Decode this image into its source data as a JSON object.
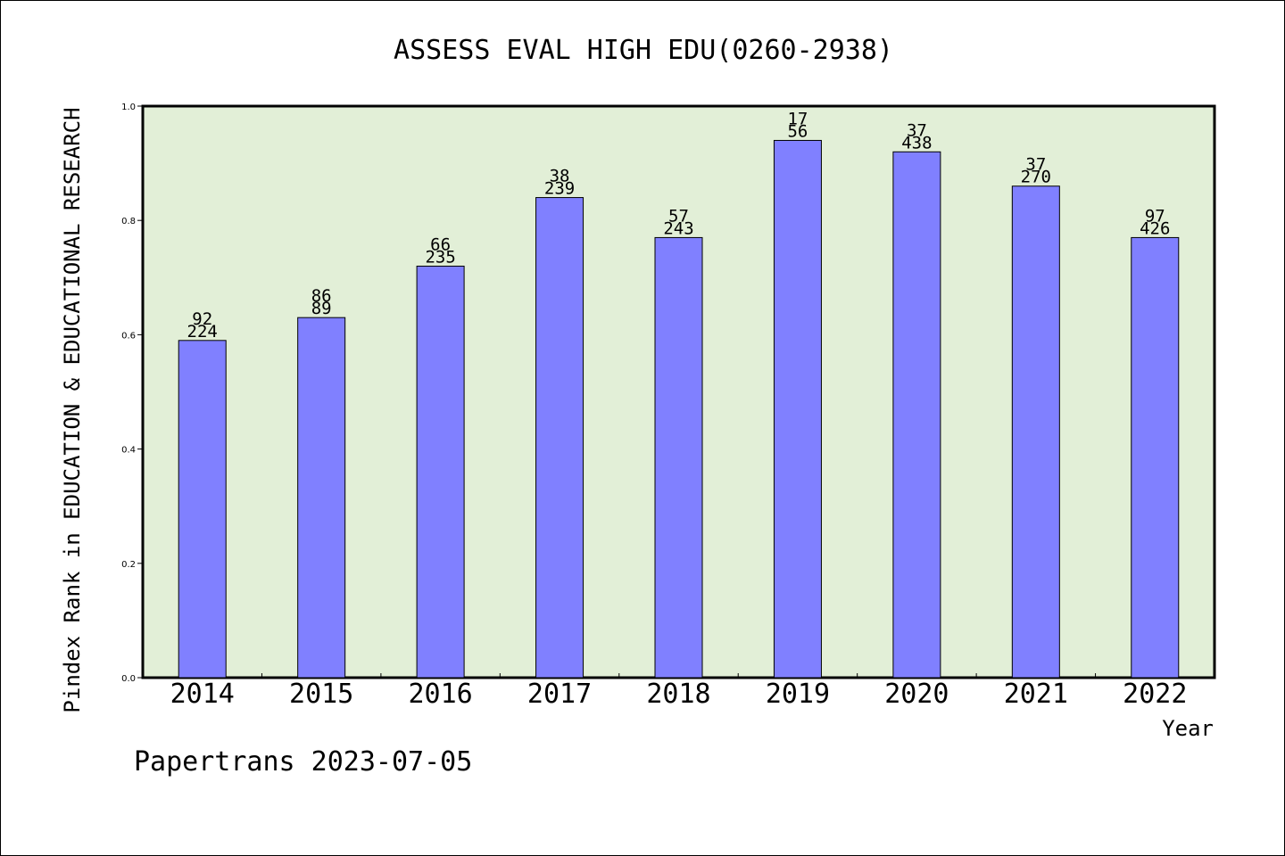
{
  "chart_data": {
    "type": "bar",
    "title": "ASSESS EVAL HIGH EDU(0260-2938)",
    "xlabel": "Year",
    "ylabel": "Pindex Rank in EDUCATION & EDUCATIONAL RESEARCH",
    "categories": [
      "2014",
      "2015",
      "2016",
      "2017",
      "2018",
      "2019",
      "2020",
      "2021",
      "2022"
    ],
    "values": [
      0.59,
      0.63,
      0.72,
      0.84,
      0.77,
      0.94,
      0.92,
      0.86,
      0.77
    ],
    "rank_labels": [
      "92",
      "86",
      "66",
      "38",
      "57",
      "17",
      "37",
      "37",
      "97"
    ],
    "total_labels": [
      "224",
      "89",
      "235",
      "239",
      "243",
      "56",
      "438",
      "270",
      "426"
    ],
    "ylim": [
      0,
      1.0
    ],
    "yticks": [
      "0.0",
      "0.2",
      "0.4",
      "0.6",
      "0.8",
      "1.0"
    ],
    "grid": false,
    "colors": {
      "bar_fill": "#8080ff",
      "plot_background": "#e2efd7",
      "axis": "#000000"
    }
  },
  "footer": {
    "text": "Papertrans 2023-07-05"
  }
}
